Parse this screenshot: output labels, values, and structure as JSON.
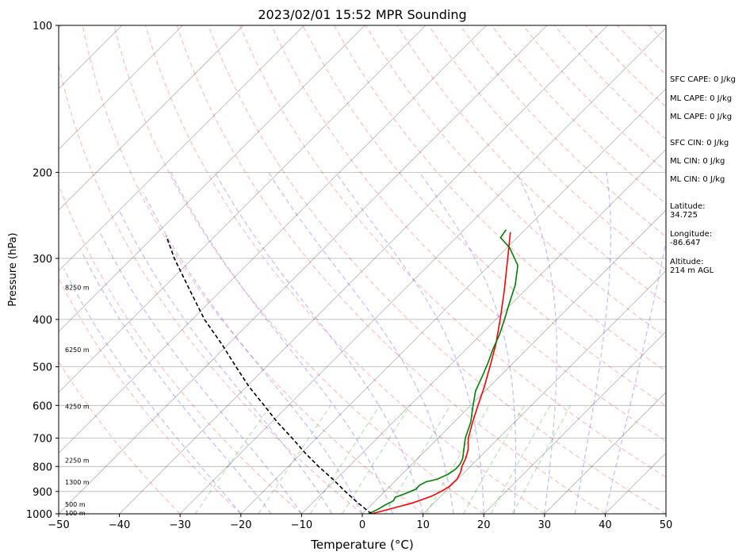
{
  "chart_data": {
    "type": "skew-t",
    "title": "2023/02/01 15:52 MPR Sounding",
    "xlabel": "Temperature (°C)",
    "ylabel": "Pressure (hPa)",
    "xlim": [
      -50,
      50
    ],
    "ylim": [
      1000,
      100
    ],
    "y_scale": "log",
    "x_ticks": [
      -50,
      -40,
      -30,
      -20,
      -10,
      0,
      10,
      20,
      30,
      40,
      50
    ],
    "y_ticks": [
      1000,
      900,
      800,
      700,
      600,
      500,
      400,
      300,
      200,
      100
    ],
    "grid": true,
    "height_labels": [
      {
        "p": 1000,
        "label": "100 m"
      },
      {
        "p": 960,
        "label": "500 m"
      },
      {
        "p": 865,
        "label": "1300 m"
      },
      {
        "p": 780,
        "label": "2250 m"
      },
      {
        "p": 605,
        "label": "4250 m"
      },
      {
        "p": 463,
        "label": "6250 m"
      },
      {
        "p": 345,
        "label": "8250 m"
      }
    ],
    "series": [
      {
        "role": "temperature",
        "color": "#ff0000",
        "points": [
          [
            1000,
            1.5
          ],
          [
            980,
            3.5
          ],
          [
            950,
            6.5
          ],
          [
            920,
            8.5
          ],
          [
            900,
            9.3
          ],
          [
            880,
            9.8
          ],
          [
            850,
            9.9
          ],
          [
            820,
            9.3
          ],
          [
            800,
            8.6
          ],
          [
            770,
            7.9
          ],
          [
            740,
            6.9
          ],
          [
            700,
            5.0
          ],
          [
            650,
            3.1
          ],
          [
            600,
            1.2
          ],
          [
            550,
            -0.8
          ],
          [
            500,
            -3.2
          ],
          [
            450,
            -5.9
          ],
          [
            400,
            -9.3
          ],
          [
            350,
            -13.3
          ],
          [
            300,
            -18.1
          ],
          [
            265,
            -22.0
          ]
        ]
      },
      {
        "role": "dewpoint",
        "color": "#008000",
        "points": [
          [
            1000,
            1.0
          ],
          [
            980,
            1.8
          ],
          [
            960,
            2.3
          ],
          [
            940,
            3.0
          ],
          [
            925,
            2.7
          ],
          [
            910,
            3.7
          ],
          [
            890,
            4.8
          ],
          [
            875,
            4.7
          ],
          [
            860,
            5.2
          ],
          [
            850,
            6.6
          ],
          [
            830,
            7.6
          ],
          [
            810,
            8.0
          ],
          [
            790,
            7.9
          ],
          [
            770,
            7.4
          ],
          [
            740,
            6.2
          ],
          [
            700,
            4.5
          ],
          [
            650,
            2.8
          ],
          [
            600,
            0.4
          ],
          [
            560,
            -1.6
          ],
          [
            520,
            -3.0
          ],
          [
            490,
            -4.2
          ],
          [
            460,
            -5.6
          ],
          [
            430,
            -6.9
          ],
          [
            400,
            -8.6
          ],
          [
            370,
            -10.5
          ],
          [
            340,
            -12.5
          ],
          [
            310,
            -15.3
          ],
          [
            285,
            -19.6
          ],
          [
            272,
            -22.7
          ],
          [
            262,
            -23.1
          ]
        ]
      },
      {
        "role": "parcel",
        "color": "#000000",
        "points": [
          [
            1000,
            1.5
          ],
          [
            950,
            -2.5
          ],
          [
            900,
            -6.5
          ],
          [
            850,
            -10.5
          ],
          [
            800,
            -15.0
          ],
          [
            750,
            -19.5
          ],
          [
            700,
            -24.0
          ],
          [
            650,
            -29.0
          ],
          [
            600,
            -34.0
          ],
          [
            550,
            -39.5
          ],
          [
            500,
            -45.0
          ],
          [
            450,
            -51.0
          ],
          [
            400,
            -58.0
          ],
          [
            350,
            -65.0
          ],
          [
            300,
            -73.0
          ],
          [
            270,
            -78.0
          ]
        ]
      }
    ],
    "indices": {
      "sfc_cape": "SFC CAPE: 0 J/kg",
      "ml_cape_1": "ML CAPE: 0 J/kg",
      "ml_cape_2": "ML CAPE: 0 J/kg",
      "sfc_cin": "SFC CIN: 0 J/kg",
      "ml_cin_1": "ML CIN: 0 J/kg",
      "ml_cin_2": "ML CIN: 0 J/kg",
      "latitude": "Latitude:\n34.725",
      "longitude": "Longitude:\n-86.647",
      "altitude": "Altitude:\n214 m AGL"
    }
  }
}
